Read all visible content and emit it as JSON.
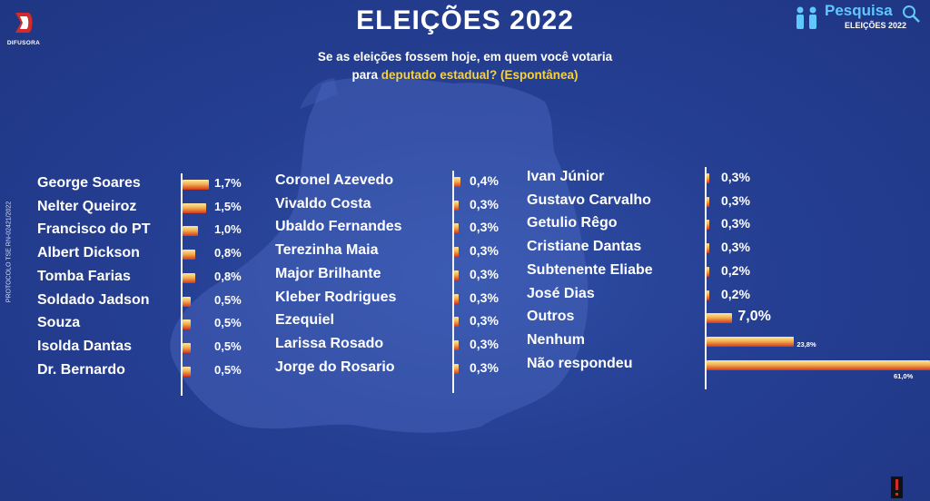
{
  "header": {
    "title": "ELEIÇÕES 2022",
    "subtitle_line1": "Se as eleições fossem hoje, em quem você votaria",
    "subtitle_prefix": "para",
    "subtitle_highlight": "deputado estadual? (Espontânea)",
    "highlight_color": "#f6d23e"
  },
  "branding": {
    "logo_text": "DIFUSORA",
    "badge_title": "Pesquisa",
    "badge_subtitle": "ELEIÇÕES 2022",
    "protocol": "PROTOCOLO TSE RN-02421/2022"
  },
  "colors": {
    "background": "#253f93",
    "bar_top": "#fde9a6",
    "bar_bottom": "#d6361f",
    "badge_accent": "#5fc8ff"
  },
  "chart_data": {
    "type": "bar",
    "orientation": "horizontal",
    "unit": "%",
    "title": "ELEIÇÕES 2022",
    "columns": [
      {
        "items": [
          {
            "name": "George Soares",
            "value": 1.7,
            "label": "1,7%"
          },
          {
            "name": "Nelter Queiroz",
            "value": 1.5,
            "label": "1,5%"
          },
          {
            "name": "Francisco do PT",
            "value": 1.0,
            "label": "1,0%"
          },
          {
            "name": "Albert Dickson",
            "value": 0.8,
            "label": "0,8%"
          },
          {
            "name": "Tomba Farias",
            "value": 0.8,
            "label": "0,8%"
          },
          {
            "name": "Soldado Jadson",
            "value": 0.5,
            "label": "0,5%"
          },
          {
            "name": "Souza",
            "value": 0.5,
            "label": "0,5%"
          },
          {
            "name": "Isolda Dantas",
            "value": 0.5,
            "label": "0,5%"
          },
          {
            "name": "Dr. Bernardo",
            "value": 0.5,
            "label": "0,5%"
          }
        ]
      },
      {
        "items": [
          {
            "name": "Coronel Azevedo",
            "value": 0.4,
            "label": "0,4%"
          },
          {
            "name": "Vivaldo Costa",
            "value": 0.3,
            "label": "0,3%"
          },
          {
            "name": "Ubaldo Fernandes",
            "value": 0.3,
            "label": "0,3%"
          },
          {
            "name": "Terezinha Maia",
            "value": 0.3,
            "label": "0,3%"
          },
          {
            "name": "Major Brilhante",
            "value": 0.3,
            "label": "0,3%"
          },
          {
            "name": "Kleber Rodrigues",
            "value": 0.3,
            "label": "0,3%"
          },
          {
            "name": "Ezequiel",
            "value": 0.3,
            "label": "0,3%"
          },
          {
            "name": "Larissa Rosado",
            "value": 0.3,
            "label": "0,3%"
          },
          {
            "name": "Jorge do Rosario",
            "value": 0.3,
            "label": "0,3%"
          }
        ]
      },
      {
        "items": [
          {
            "name": "Ivan Júnior",
            "value": 0.3,
            "label": "0,3%"
          },
          {
            "name": "Gustavo Carvalho",
            "value": 0.3,
            "label": "0,3%"
          },
          {
            "name": "Getulio Rêgo",
            "value": 0.3,
            "label": "0,3%"
          },
          {
            "name": "Cristiane Dantas",
            "value": 0.3,
            "label": "0,3%"
          },
          {
            "name": "Subtenente Eliabe",
            "value": 0.2,
            "label": "0,2%"
          },
          {
            "name": "José Dias",
            "value": 0.2,
            "label": "0,2%"
          },
          {
            "name": "Outros",
            "value": 7.0,
            "label": "7,0%"
          },
          {
            "name": "Nenhum",
            "value": 23.8,
            "label": "23,8%"
          },
          {
            "name": "Não respondeu",
            "value": 61.0,
            "label": "61,0%"
          }
        ]
      }
    ]
  }
}
